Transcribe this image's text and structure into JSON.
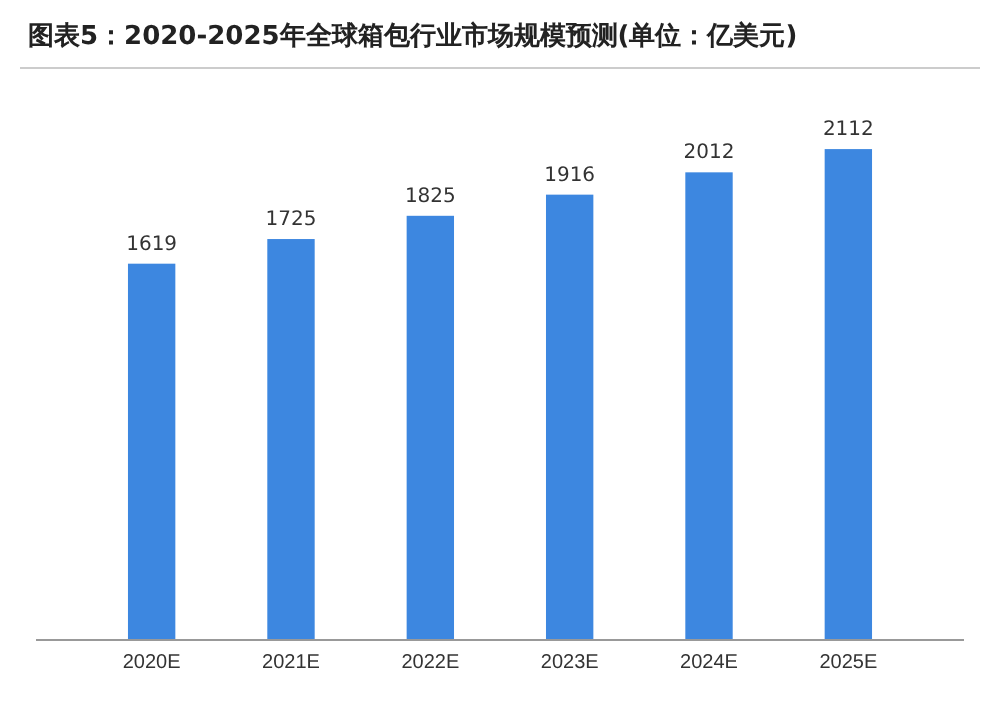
{
  "chart_data": {
    "type": "bar",
    "title": "图表5：2020-2025年全球箱包行业市场规模预测(单位：亿美元)",
    "categories": [
      "2020E",
      "2021E",
      "2022E",
      "2023E",
      "2024E",
      "2025E"
    ],
    "values": [
      1619,
      1725,
      1825,
      1916,
      2012,
      2112
    ],
    "color": "#3d87e0",
    "data_labels": true
  }
}
